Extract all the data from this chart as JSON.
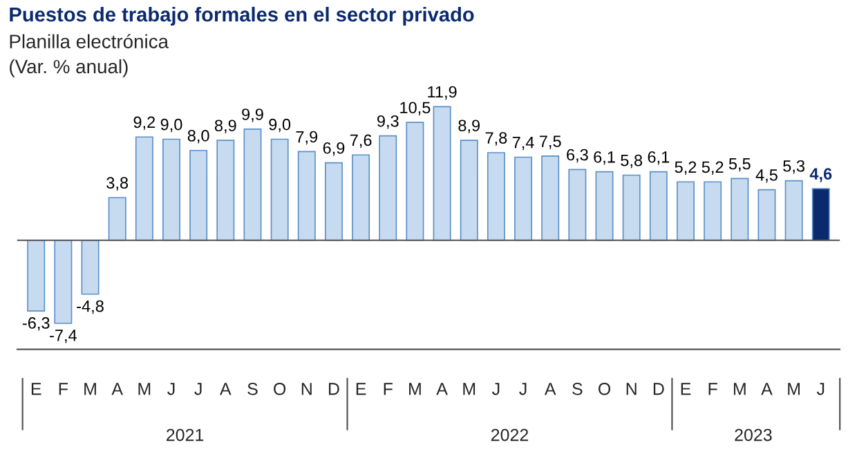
{
  "chart_data": {
    "type": "bar",
    "title": "Puestos de trabajo formales en el sector privado",
    "subtitle": "Planilla electrónica",
    "ylabel": "(Var. % anual)",
    "categories": [
      "E",
      "F",
      "M",
      "A",
      "M",
      "J",
      "J",
      "A",
      "S",
      "O",
      "N",
      "D",
      "E",
      "F",
      "M",
      "A",
      "M",
      "J",
      "J",
      "A",
      "S",
      "O",
      "N",
      "D",
      "E",
      "F",
      "M",
      "A",
      "M",
      "J"
    ],
    "values": [
      -6.3,
      -7.4,
      -4.8,
      3.8,
      9.2,
      9.0,
      8.0,
      8.9,
      9.9,
      9.0,
      7.9,
      6.9,
      7.6,
      9.3,
      10.5,
      11.9,
      8.9,
      7.8,
      7.4,
      7.5,
      6.3,
      6.1,
      5.8,
      6.1,
      5.2,
      5.2,
      5.5,
      4.5,
      5.3,
      4.6
    ],
    "value_labels": [
      "-6,3",
      "-7,4",
      "-4,8",
      "3,8",
      "9,2",
      "9,0",
      "8,0",
      "8,9",
      "9,9",
      "9,0",
      "7,9",
      "6,9",
      "7,6",
      "9,3",
      "10,5",
      "11,9",
      "8,9",
      "7,8",
      "7,4",
      "7,5",
      "6,3",
      "6,1",
      "5,8",
      "6,1",
      "5,2",
      "5,2",
      "5,5",
      "4,5",
      "5,3",
      "4,6"
    ],
    "colors": [
      "#c6dbef",
      "#c6dbef",
      "#c6dbef",
      "#c6dbef",
      "#c6dbef",
      "#c6dbef",
      "#c6dbef",
      "#c6dbef",
      "#c6dbef",
      "#c6dbef",
      "#c6dbef",
      "#c6dbef",
      "#c6dbef",
      "#c6dbef",
      "#c6dbef",
      "#c6dbef",
      "#c6dbef",
      "#c6dbef",
      "#c6dbef",
      "#c6dbef",
      "#c6dbef",
      "#c6dbef",
      "#c6dbef",
      "#c6dbef",
      "#c6dbef",
      "#c6dbef",
      "#c6dbef",
      "#c6dbef",
      "#c6dbef",
      "#0b2a6e"
    ],
    "annotations": [
      "2021",
      "2022",
      "2023"
    ],
    "grid": false,
    "legend": false
  }
}
